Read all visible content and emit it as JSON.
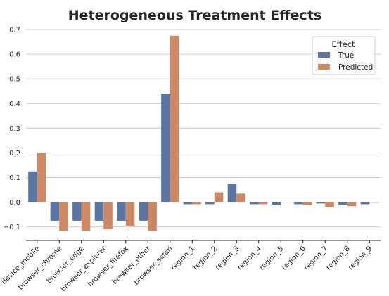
{
  "chart_data": {
    "type": "bar",
    "title": "Heterogeneous Treatment Effects",
    "xlabel": "",
    "ylabel": "",
    "categories": [
      "device_mobile",
      "browser_chrome",
      "browser_edge",
      "browser_explorer",
      "browser_firefox",
      "browser_other",
      "browser_safari",
      "region_1",
      "region_2",
      "region_3",
      "region_4",
      "region_5",
      "region_6",
      "region_7",
      "region_8",
      "region_9"
    ],
    "series": [
      {
        "name": "True",
        "color": "#5875a4",
        "values": [
          0.125,
          -0.075,
          -0.075,
          -0.075,
          -0.075,
          -0.075,
          0.44,
          -0.008,
          -0.008,
          0.075,
          -0.008,
          -0.01,
          -0.008,
          -0.005,
          -0.01,
          -0.008
        ]
      },
      {
        "name": "Predicted",
        "color": "#cc8963",
        "values": [
          0.2,
          -0.115,
          -0.115,
          -0.11,
          -0.095,
          -0.115,
          0.675,
          -0.008,
          0.04,
          0.035,
          -0.008,
          0,
          -0.012,
          -0.02,
          -0.016,
          -0.002
        ]
      }
    ],
    "yticks": [
      "−0.1",
      "0.0",
      "0.1",
      "0.2",
      "0.3",
      "0.4",
      "0.5",
      "0.6",
      "0.7"
    ],
    "ylim": [
      -0.155,
      0.72
    ],
    "grid": "horizontal",
    "legend": {
      "title": "Effect",
      "position": "top-right"
    }
  }
}
